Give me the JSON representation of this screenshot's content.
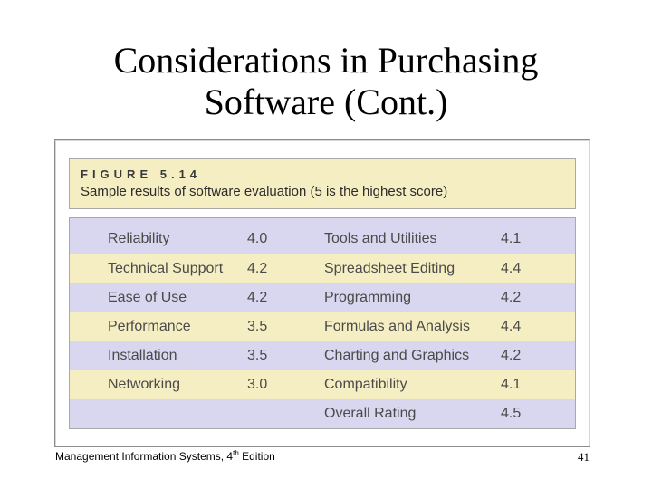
{
  "slide": {
    "title_line1": "Considerations in Purchasing",
    "title_line2": "Software (Cont.)"
  },
  "figure": {
    "number": "FIGURE 5.14",
    "caption": "Sample results of software evaluation (5 is the highest score)",
    "colors": {
      "caption_bg": "#f6eec3",
      "row_lavender": "#d9d7ef",
      "row_cream": "#f6eec3"
    },
    "rows": [
      [
        "Reliability",
        "4.0",
        "Tools and Utilities",
        "4.1"
      ],
      [
        "Technical Support",
        "4.2",
        "Spreadsheet Editing",
        "4.4"
      ],
      [
        "Ease of Use",
        "4.2",
        "Programming",
        "4.2"
      ],
      [
        "Performance",
        "3.5",
        "Formulas and Analysis",
        "4.4"
      ],
      [
        "Installation",
        "3.5",
        "Charting and Graphics",
        "4.2"
      ],
      [
        "Networking",
        "3.0",
        "Compatibility",
        "4.1"
      ],
      [
        "",
        "",
        "Overall Rating",
        "4.5"
      ]
    ]
  },
  "footer": {
    "book_title_prefix": "Management Information Systems, 4",
    "edition_superscript": "th",
    "book_title_suffix": " Edition",
    "page_number": "41"
  }
}
